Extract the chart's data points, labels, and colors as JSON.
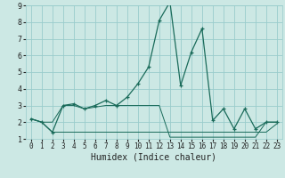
{
  "xlabel": "Humidex (Indice chaleur)",
  "bg_color": "#cce8e4",
  "grid_color": "#99cccc",
  "line_color": "#1a6b5a",
  "xlim": [
    -0.5,
    23.5
  ],
  "ylim": [
    1,
    9
  ],
  "xticks": [
    0,
    1,
    2,
    3,
    4,
    5,
    6,
    7,
    8,
    9,
    10,
    11,
    12,
    13,
    14,
    15,
    16,
    17,
    18,
    19,
    20,
    21,
    22,
    23
  ],
  "yticks": [
    1,
    2,
    3,
    4,
    5,
    6,
    7,
    8,
    9
  ],
  "series_main": [
    2.2,
    2.0,
    1.4,
    3.0,
    3.1,
    2.8,
    3.0,
    3.3,
    3.0,
    3.5,
    4.3,
    5.3,
    8.1,
    9.2,
    4.2,
    6.2,
    7.6,
    2.1,
    2.8,
    1.6,
    2.8,
    1.6,
    2.0,
    2.0
  ],
  "series_mid": [
    2.2,
    2.0,
    2.0,
    3.0,
    3.0,
    2.8,
    2.9,
    3.0,
    3.0,
    3.0,
    3.0,
    3.0,
    3.0,
    1.1,
    1.1,
    1.1,
    1.1,
    1.1,
    1.1,
    1.1,
    1.1,
    1.1,
    2.0,
    2.0
  ],
  "series_bot": [
    2.2,
    2.0,
    1.4,
    1.4,
    1.4,
    1.4,
    1.4,
    1.4,
    1.4,
    1.4,
    1.4,
    1.4,
    1.4,
    1.4,
    1.4,
    1.4,
    1.4,
    1.4,
    1.4,
    1.4,
    1.4,
    1.4,
    1.4,
    1.9
  ],
  "xlabel_fontsize": 7,
  "tick_fontsize": 6
}
